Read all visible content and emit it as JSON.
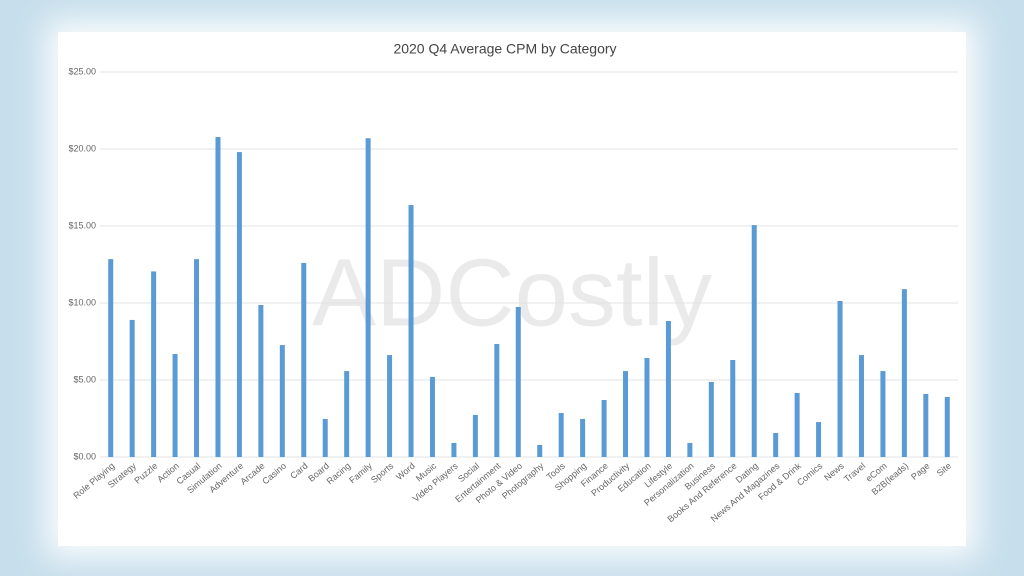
{
  "chart_data": {
    "type": "bar",
    "title": "2020 Q4 Average CPM by Category",
    "watermark": "ADCostly",
    "categories": [
      "Role Playing",
      "Strategy",
      "Puzzle",
      "Action",
      "Casual",
      "Simulation",
      "Adventure",
      "Arcade",
      "Casino",
      "Card",
      "Board",
      "Racing",
      "Family",
      "Sports",
      "Word",
      "Music",
      "Video Players",
      "Social",
      "Entertainment",
      "Photo & Video",
      "Photography",
      "Tools",
      "Shopping",
      "Finance",
      "Productivity",
      "Education",
      "Lifestyle",
      "Personalization",
      "Business",
      "Books And Reference",
      "Dating",
      "News And Magazines",
      "Food & Drink",
      "Comics",
      "News",
      "Travel",
      "eCom",
      "B2B(leads)",
      "Page",
      "Site"
    ],
    "values": [
      12.85,
      8.9,
      12.05,
      6.69,
      12.85,
      20.78,
      19.8,
      9.87,
      7.27,
      12.6,
      2.47,
      5.58,
      20.7,
      6.62,
      16.36,
      5.2,
      0.91,
      2.73,
      7.34,
      9.74,
      0.78,
      2.86,
      2.47,
      3.7,
      5.58,
      6.43,
      8.83,
      0.91,
      4.87,
      6.3,
      15.06,
      1.56,
      4.16,
      2.27,
      10.13,
      6.62,
      5.58,
      10.9,
      4.09,
      3.9
    ],
    "color": "#5b9bd5",
    "ylim": [
      0,
      25
    ],
    "yticks": [
      {
        "value": 0,
        "label": "$0.00"
      },
      {
        "value": 5,
        "label": "$5.00"
      },
      {
        "value": 10,
        "label": "$10.00"
      },
      {
        "value": 15,
        "label": "$15.00"
      },
      {
        "value": 20,
        "label": "$20.00"
      },
      {
        "value": 25,
        "label": "$25.00"
      }
    ],
    "grid": true
  }
}
